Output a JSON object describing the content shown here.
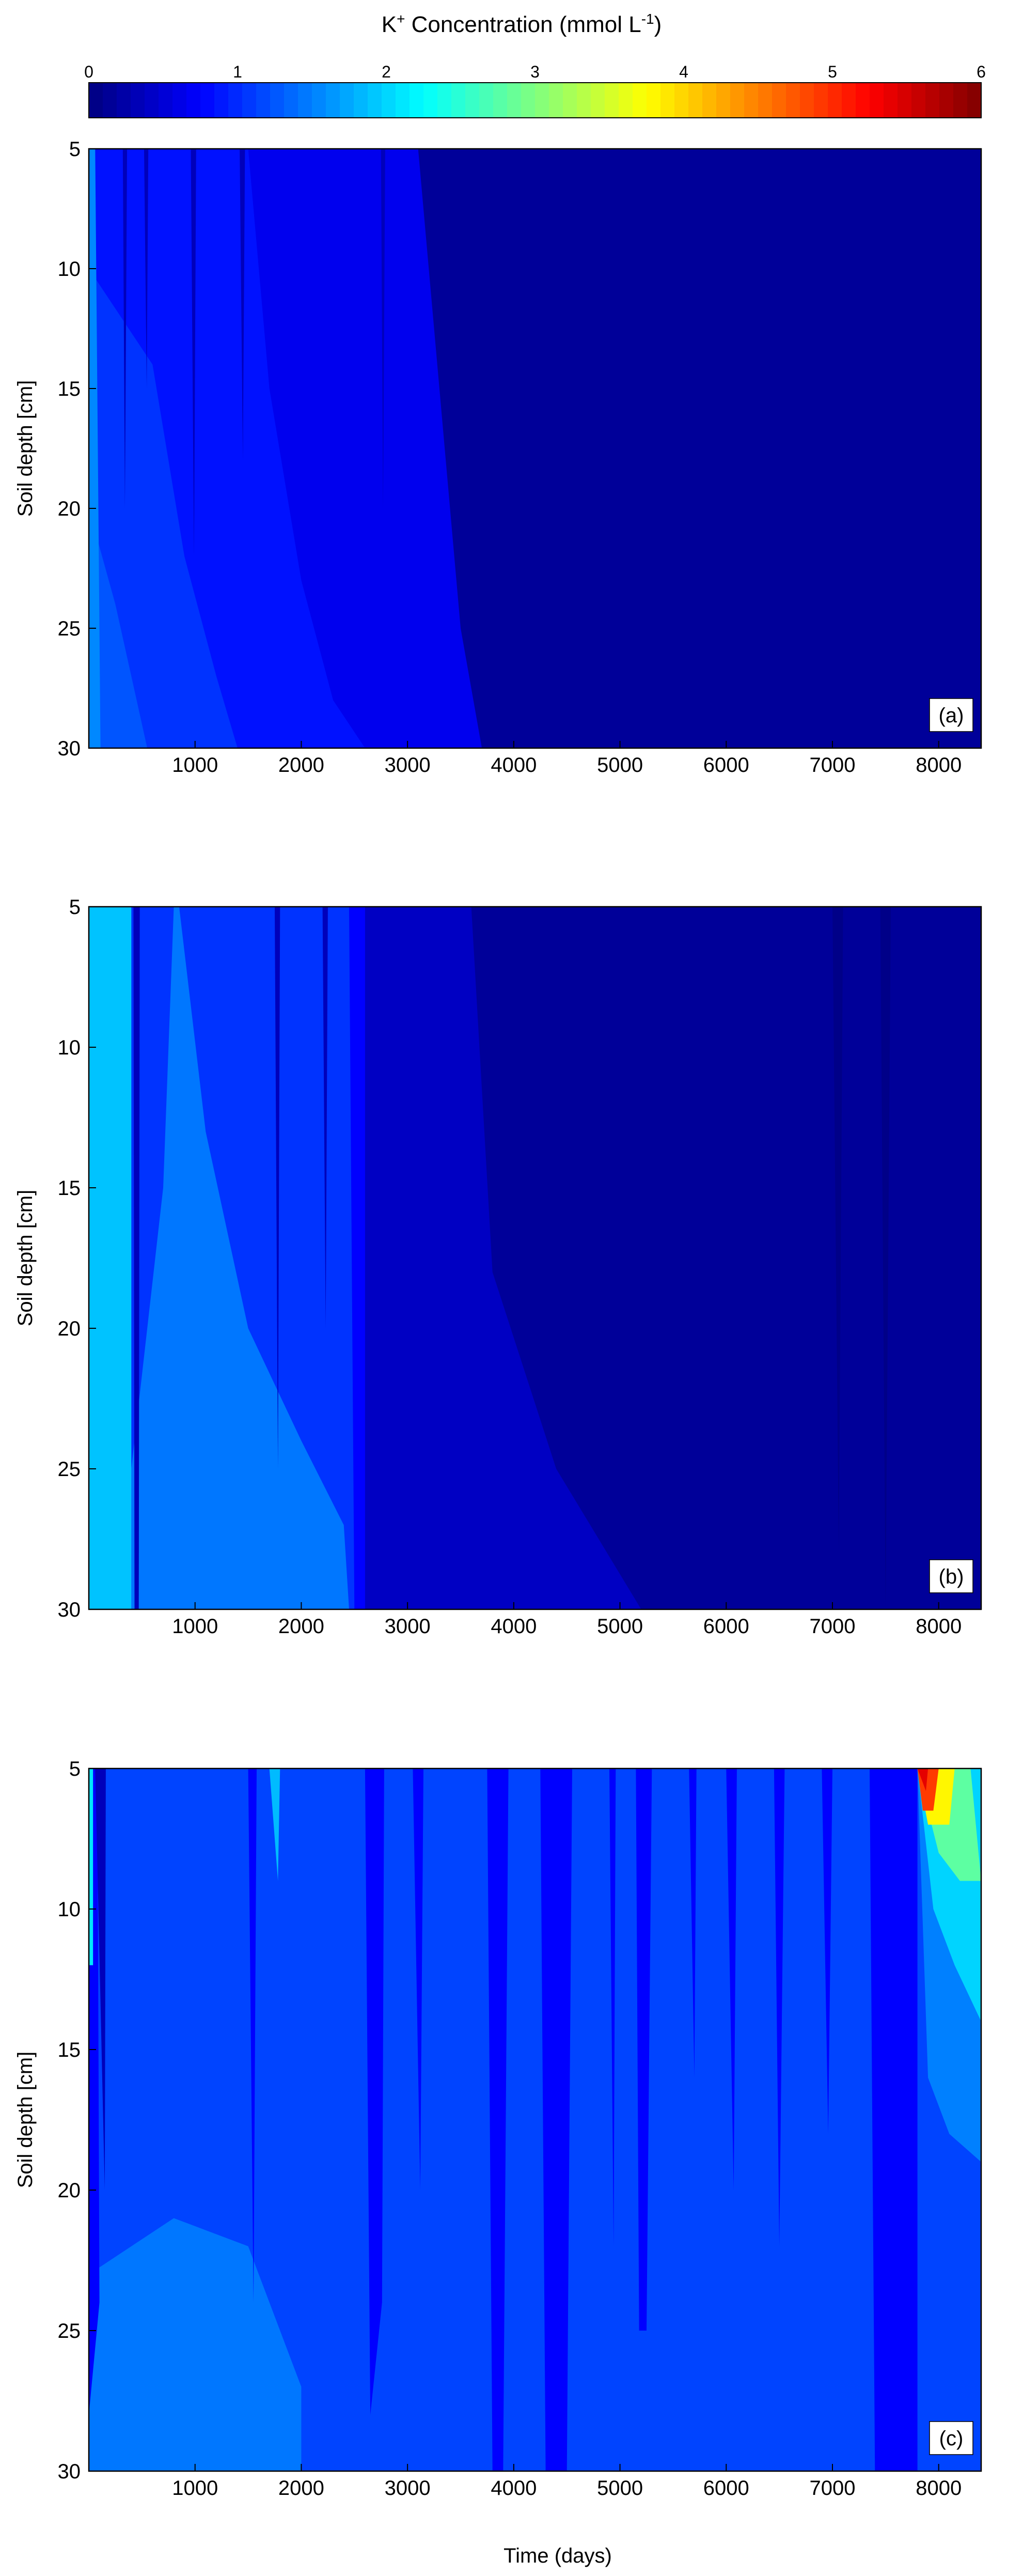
{
  "chart_data": {
    "type": "heatmap",
    "colorbar": {
      "title_main": "K",
      "title_sup": "+",
      "title_rest": " Concentration (mmol L",
      "title_unit_sup": "-1",
      "title_close": ")",
      "min": 0,
      "max": 6,
      "ticks": [
        0,
        1,
        2,
        3,
        4,
        5,
        6
      ],
      "colormap": "jet",
      "placement": "top"
    },
    "xlabel": "Time (days)",
    "x_range": [
      0,
      8400
    ],
    "x_ticks": [
      1000,
      2000,
      3000,
      4000,
      5000,
      6000,
      7000,
      8000
    ],
    "y_range": [
      5,
      30
    ],
    "y_ticks": [
      5,
      10,
      15,
      20,
      25,
      30
    ],
    "y_reversed": true,
    "panels": [
      {
        "label": "(a)",
        "ylabel": "Soil depth [cm]",
        "background_value": 0.15,
        "regions": [
          {
            "value": 0.65,
            "poly": [
              [
                0,
                5
              ],
              [
                3100,
                5
              ],
              [
                3300,
                15
              ],
              [
                3500,
                25
              ],
              [
                3700,
                30
              ],
              [
                0,
                30
              ]
            ]
          },
          {
            "value": 0.85,
            "poly": [
              [
                0,
                5
              ],
              [
                1500,
                5
              ],
              [
                1700,
                15
              ],
              [
                2000,
                23
              ],
              [
                2300,
                28
              ],
              [
                2600,
                30
              ],
              [
                0,
                30
              ]
            ]
          },
          {
            "value": 1.05,
            "poly": [
              [
                0,
                10
              ],
              [
                600,
                14
              ],
              [
                900,
                22
              ],
              [
                1200,
                27
              ],
              [
                1400,
                30
              ],
              [
                0,
                30
              ]
            ]
          },
          {
            "value": 1.25,
            "poly": [
              [
                0,
                20
              ],
              [
                250,
                24
              ],
              [
                450,
                28
              ],
              [
                550,
                30
              ],
              [
                0,
                30
              ]
            ]
          },
          {
            "value": 1.55,
            "poly": [
              [
                0,
                5
              ],
              [
                60,
                5
              ],
              [
                110,
                30
              ],
              [
                0,
                30
              ]
            ]
          },
          {
            "value": 0.35,
            "poly": [
              [
                320,
                5
              ],
              [
                360,
                5
              ],
              [
                340,
                20
              ]
            ]
          },
          {
            "value": 0.35,
            "poly": [
              [
                520,
                5
              ],
              [
                560,
                5
              ],
              [
                545,
                15
              ]
            ]
          },
          {
            "value": 0.35,
            "poly": [
              [
                960,
                5
              ],
              [
                1010,
                5
              ],
              [
                990,
                22
              ]
            ]
          },
          {
            "value": 0.35,
            "poly": [
              [
                1420,
                5
              ],
              [
                1470,
                5
              ],
              [
                1450,
                18
              ]
            ]
          },
          {
            "value": 0.35,
            "poly": [
              [
                2750,
                5
              ],
              [
                2790,
                5
              ],
              [
                2770,
                20
              ]
            ]
          }
        ]
      },
      {
        "label": "(b)",
        "ylabel": "Soil depth [cm]",
        "background_value": 0.4,
        "regions": [
          {
            "value": 0.15,
            "poly": [
              [
                3600,
                5
              ],
              [
                8400,
                5
              ],
              [
                8400,
                30
              ],
              [
                5200,
                30
              ],
              [
                4400,
                25
              ],
              [
                3800,
                18
              ]
            ]
          },
          {
            "value": 0.75,
            "poly": [
              [
                0,
                5
              ],
              [
                2600,
                5
              ],
              [
                2600,
                30
              ],
              [
                0,
                30
              ]
            ]
          },
          {
            "value": 1.05,
            "poly": [
              [
                0,
                5
              ],
              [
                2450,
                5
              ],
              [
                2500,
                30
              ],
              [
                0,
                30
              ]
            ]
          },
          {
            "value": 1.45,
            "poly": [
              [
                800,
                5
              ],
              [
                850,
                5
              ],
              [
                1100,
                13
              ],
              [
                1500,
                20
              ],
              [
                2000,
                24
              ],
              [
                2400,
                27
              ],
              [
                2450,
                30
              ],
              [
                400,
                30
              ],
              [
                400,
                25
              ],
              [
                700,
                15
              ]
            ]
          },
          {
            "value": 1.9,
            "poly": [
              [
                0,
                5
              ],
              [
                400,
                5
              ],
              [
                400,
                30
              ],
              [
                0,
                30
              ]
            ]
          },
          {
            "value": 0.35,
            "poly": [
              [
                420,
                5
              ],
              [
                480,
                5
              ],
              [
                470,
                30
              ],
              [
                430,
                30
              ]
            ]
          },
          {
            "value": 0.35,
            "poly": [
              [
                1750,
                5
              ],
              [
                1800,
                5
              ],
              [
                1780,
                25
              ]
            ]
          },
          {
            "value": 0.35,
            "poly": [
              [
                2200,
                5
              ],
              [
                2250,
                5
              ],
              [
                2230,
                20
              ]
            ]
          },
          {
            "value": 0.05,
            "poly": [
              [
                7000,
                5
              ],
              [
                7100,
                5
              ],
              [
                7060,
                28
              ]
            ]
          },
          {
            "value": 0.05,
            "poly": [
              [
                7450,
                5
              ],
              [
                7550,
                5
              ],
              [
                7500,
                30
              ]
            ]
          }
        ]
      },
      {
        "label": "(c)",
        "ylabel": "Soil depth [cm]",
        "background_value": 1.15,
        "regions": [
          {
            "value": 1.45,
            "poly": [
              [
                0,
                23
              ],
              [
                800,
                21
              ],
              [
                1500,
                22
              ],
              [
                2000,
                27
              ],
              [
                2000,
                30
              ],
              [
                0,
                30
              ]
            ]
          },
          {
            "value": 0.75,
            "poly": [
              [
                2600,
                5
              ],
              [
                2780,
                5
              ],
              [
                2760,
                24
              ],
              [
                2650,
                28
              ]
            ]
          },
          {
            "value": 0.75,
            "poly": [
              [
                3750,
                5
              ],
              [
                3950,
                5
              ],
              [
                3900,
                30
              ],
              [
                3800,
                30
              ]
            ]
          },
          {
            "value": 0.75,
            "poly": [
              [
                4250,
                5
              ],
              [
                4550,
                5
              ],
              [
                4500,
                30
              ],
              [
                4300,
                30
              ]
            ]
          },
          {
            "value": 0.75,
            "poly": [
              [
                4900,
                5
              ],
              [
                4960,
                5
              ],
              [
                4940,
                22
              ]
            ]
          },
          {
            "value": 0.75,
            "poly": [
              [
                5150,
                5
              ],
              [
                5300,
                5
              ],
              [
                5250,
                25
              ],
              [
                5180,
                25
              ]
            ]
          },
          {
            "value": 0.75,
            "poly": [
              [
                5650,
                5
              ],
              [
                5720,
                5
              ],
              [
                5700,
                16
              ]
            ]
          },
          {
            "value": 0.75,
            "poly": [
              [
                6000,
                5
              ],
              [
                6100,
                5
              ],
              [
                6070,
                20
              ]
            ]
          },
          {
            "value": 0.75,
            "poly": [
              [
                6450,
                5
              ],
              [
                6550,
                5
              ],
              [
                6500,
                22
              ]
            ]
          },
          {
            "value": 0.75,
            "poly": [
              [
                6900,
                5
              ],
              [
                7000,
                5
              ],
              [
                6960,
                18
              ]
            ]
          },
          {
            "value": 0.75,
            "poly": [
              [
                7350,
                5
              ],
              [
                7800,
                5
              ],
              [
                7800,
                30
              ],
              [
                7400,
                30
              ]
            ]
          },
          {
            "value": 0.75,
            "poly": [
              [
                3050,
                5
              ],
              [
                3150,
                5
              ],
              [
                3120,
                20
              ]
            ]
          },
          {
            "value": 0.75,
            "poly": [
              [
                1500,
                5
              ],
              [
                1580,
                5
              ],
              [
                1550,
                24
              ]
            ]
          },
          {
            "value": 0.75,
            "poly": [
              [
                0,
                5
              ],
              [
                80,
                5
              ],
              [
                100,
                24
              ],
              [
                0,
                28
              ]
            ]
          },
          {
            "value": 0.35,
            "poly": [
              [
                60,
                5
              ],
              [
                160,
                5
              ],
              [
                150,
                20
              ]
            ]
          },
          {
            "value": 1.85,
            "poly": [
              [
                1700,
                5
              ],
              [
                1800,
                5
              ],
              [
                1780,
                9
              ]
            ]
          },
          {
            "value": 2.1,
            "poly": [
              [
                0,
                5
              ],
              [
                40,
                5
              ],
              [
                40,
                12
              ],
              [
                0,
                12
              ]
            ]
          },
          {
            "value": 1.5,
            "poly": [
              [
                7800,
                5
              ],
              [
                8400,
                5
              ],
              [
                8400,
                19
              ],
              [
                8100,
                18
              ],
              [
                7900,
                16
              ]
            ]
          },
          {
            "value": 2.0,
            "poly": [
              [
                7800,
                5
              ],
              [
                8400,
                5
              ],
              [
                8400,
                14
              ],
              [
                8150,
                12
              ],
              [
                7950,
                10
              ]
            ]
          },
          {
            "value": 2.8,
            "poly": [
              [
                7800,
                5
              ],
              [
                8300,
                5
              ],
              [
                8400,
                9
              ],
              [
                8200,
                9
              ],
              [
                8000,
                8
              ]
            ]
          },
          {
            "value": 3.8,
            "poly": [
              [
                7800,
                5
              ],
              [
                8150,
                5
              ],
              [
                8100,
                7
              ],
              [
                7900,
                7
              ]
            ]
          },
          {
            "value": 4.9,
            "poly": [
              [
                7800,
                5
              ],
              [
                8000,
                5
              ],
              [
                7950,
                6.5
              ],
              [
                7850,
                6.5
              ]
            ]
          },
          {
            "value": 5.4,
            "poly": [
              [
                7800,
                5
              ],
              [
                7900,
                5
              ],
              [
                7880,
                5.8
              ]
            ]
          }
        ]
      }
    ]
  }
}
